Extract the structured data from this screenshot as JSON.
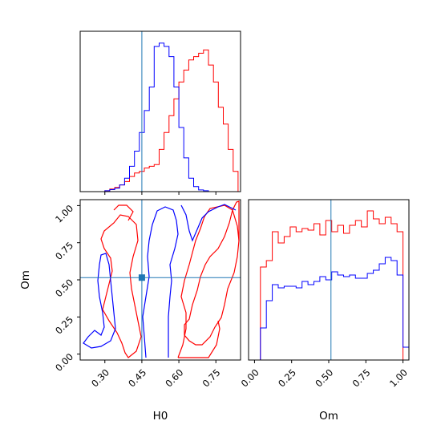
{
  "chart_data": {
    "type": "corner",
    "truth": {
      "H0": 0.45,
      "Om": 0.515
    },
    "colors": {
      "series_a": "#ff0000",
      "series_b": "#0000ff",
      "truth": "#1f77b4"
    },
    "parameters": [
      {
        "name": "H0",
        "label": "H0",
        "range": [
          0.2,
          0.85
        ],
        "ticks": [
          0.3,
          0.45,
          0.6,
          0.75
        ],
        "tick_labels": [
          "0.30",
          "0.45",
          "0.60",
          "0.75"
        ]
      },
      {
        "name": "Om",
        "label": "Om",
        "range": [
          -0.04,
          1.04
        ],
        "ticks": [
          0.0,
          0.25,
          0.5,
          0.75,
          1.0
        ],
        "tick_labels": [
          "0.00",
          "0.25",
          "0.50",
          "0.75",
          "1.00"
        ]
      }
    ],
    "histogram_H0": {
      "bin_edges": [
        0.2,
        0.22,
        0.24,
        0.26,
        0.28,
        0.3,
        0.32,
        0.34,
        0.36,
        0.38,
        0.4,
        0.42,
        0.44,
        0.46,
        0.48,
        0.5,
        0.52,
        0.54,
        0.56,
        0.58,
        0.6,
        0.62,
        0.64,
        0.66,
        0.68,
        0.7,
        0.72,
        0.74,
        0.76,
        0.78,
        0.8,
        0.82,
        0.84
      ],
      "series": [
        {
          "name": "red",
          "counts": [
            0,
            0,
            0,
            0,
            0,
            0.5,
            1.5,
            2.5,
            4,
            6,
            9,
            11,
            12,
            14,
            15,
            16,
            25,
            35,
            45,
            55,
            65,
            72,
            78,
            80,
            82,
            84,
            75,
            65,
            50,
            40,
            25,
            12
          ]
        },
        {
          "name": "blue",
          "counts": [
            0,
            0,
            0,
            0,
            0,
            0.5,
            1.2,
            2,
            4,
            8,
            15,
            24,
            35,
            48,
            62,
            86,
            88,
            86,
            80,
            62,
            38,
            20,
            8,
            3,
            1,
            0.5,
            0,
            0,
            0,
            0,
            0,
            0
          ]
        }
      ]
    },
    "histogram_Om": {
      "bin_edges": [
        -0.04,
        0.0,
        0.04,
        0.08,
        0.12,
        0.16,
        0.2,
        0.24,
        0.28,
        0.32,
        0.36,
        0.4,
        0.44,
        0.48,
        0.52,
        0.56,
        0.6,
        0.64,
        0.68,
        0.72,
        0.76,
        0.8,
        0.84,
        0.88,
        0.92,
        0.96,
        1.0,
        1.04
      ],
      "series": [
        {
          "name": "red",
          "counts": [
            0,
            0,
            58,
            62,
            80,
            73,
            77,
            83,
            80,
            82,
            81,
            85,
            78,
            87,
            80,
            84,
            79,
            84,
            87,
            83,
            93,
            88,
            85,
            89,
            85,
            80,
            0
          ]
        },
        {
          "name": "blue",
          "counts": [
            0,
            0,
            20,
            37,
            47,
            45,
            46,
            46,
            45,
            49,
            47,
            49,
            52,
            50,
            55,
            53,
            52,
            53,
            51,
            51,
            54,
            56,
            60,
            64,
            62,
            53,
            8
          ]
        }
      ]
    }
  }
}
